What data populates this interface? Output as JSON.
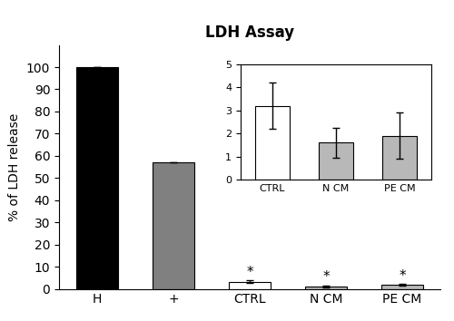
{
  "chart_data": [
    {
      "type": "bar",
      "title": "LDH Assay",
      "ylabel": "% of LDH release",
      "categories": [
        "H",
        "+",
        "CTRL",
        "N CM",
        "PE CM"
      ],
      "values": [
        100,
        57,
        3.2,
        1.2,
        1.8
      ],
      "errors": [
        0,
        0,
        0.6,
        0.35,
        0.3
      ],
      "colors": [
        "#000000",
        "#808080",
        "#ffffff",
        "#b8b8b8",
        "#b8b8b8"
      ],
      "ylim": [
        0,
        110
      ],
      "yticks": [
        0,
        10,
        20,
        30,
        40,
        50,
        60,
        70,
        80,
        90,
        100
      ],
      "annotations": [
        {
          "text": "*",
          "category": "CTRL"
        },
        {
          "text": "*",
          "category": "N CM"
        },
        {
          "text": "*",
          "category": "PE CM"
        }
      ]
    },
    {
      "type": "bar",
      "categories": [
        "CTRL",
        "N CM",
        "PE CM"
      ],
      "values": [
        3.2,
        1.6,
        1.9
      ],
      "errors": [
        1.0,
        0.65,
        1.0
      ],
      "colors": [
        "#ffffff",
        "#b8b8b8",
        "#b8b8b8"
      ],
      "ylim": [
        0,
        5
      ],
      "yticks": [
        0,
        1,
        2,
        3,
        4,
        5
      ]
    }
  ]
}
